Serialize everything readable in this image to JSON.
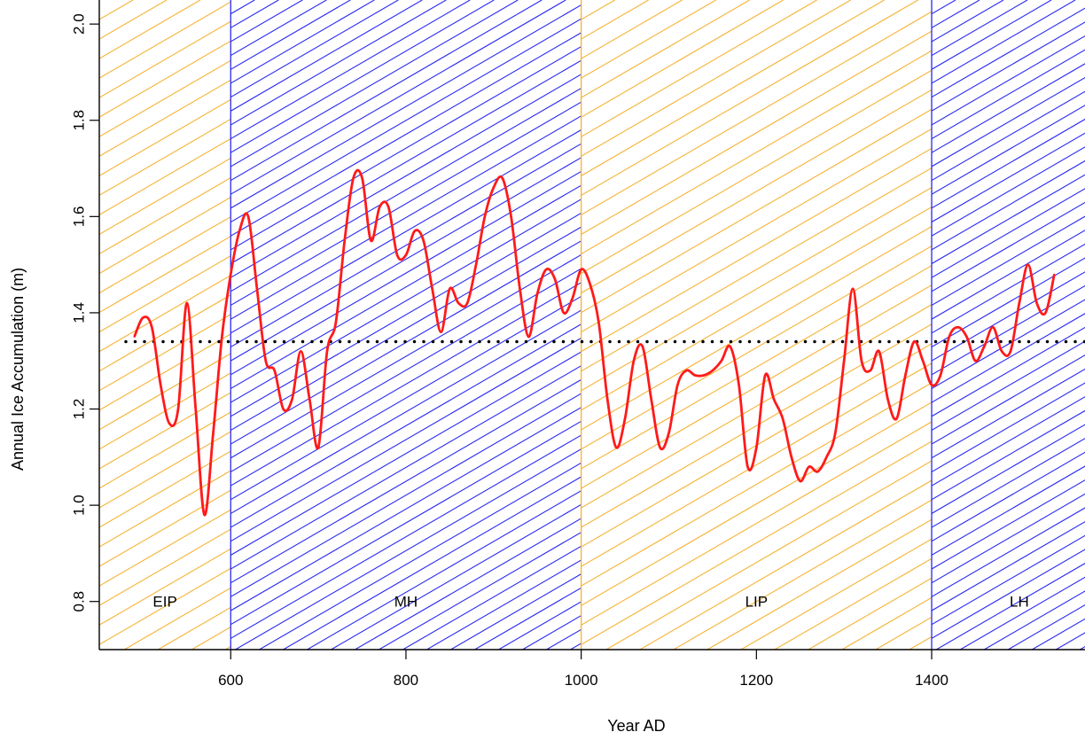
{
  "chart_data": {
    "type": "line",
    "title": "",
    "xlabel": "Year AD",
    "ylabel": "Annual Ice Accumulation (m)",
    "xlim": [
      450,
      1575
    ],
    "ylim": [
      0.7,
      2.05
    ],
    "xticks": [
      600,
      800,
      1000,
      1200,
      1400
    ],
    "xtick_labels": [
      "600",
      "800",
      "1000",
      "1200",
      "1400"
    ],
    "yticks": [
      0.8,
      1.0,
      1.2,
      1.4,
      1.6,
      1.8,
      2.0
    ],
    "ytick_labels": [
      "0.8",
      "1.0",
      "1.2",
      "1.4",
      "1.6",
      "1.8",
      "2.0"
    ],
    "mean_line": {
      "y": 1.34,
      "style": "dotted",
      "color": "#000000"
    },
    "periods": [
      {
        "label": "EIP",
        "start": 450,
        "end": 600,
        "hatch": "orange"
      },
      {
        "label": "MH",
        "start": 600,
        "end": 1000,
        "hatch": "blue"
      },
      {
        "label": "LIP",
        "start": 1000,
        "end": 1400,
        "hatch": "orange"
      },
      {
        "label": "LH",
        "start": 1400,
        "end": 1575,
        "hatch": "blue"
      }
    ],
    "colors": {
      "orange": "#f5b335",
      "blue": "#2a2af0",
      "line": "#ff1a1a"
    },
    "series": [
      {
        "x": [
          490,
          500,
          510,
          520,
          530,
          540,
          550,
          560,
          570,
          580,
          590,
          600,
          610,
          620,
          630,
          640,
          650,
          660,
          670,
          680,
          690,
          700,
          710,
          720,
          730,
          740,
          750,
          760,
          770,
          780,
          790,
          800,
          810,
          820,
          830,
          840,
          850,
          860,
          870,
          880,
          890,
          900,
          910,
          920,
          930,
          940,
          950,
          960,
          970,
          980,
          990,
          1000,
          1010,
          1020,
          1030,
          1040,
          1050,
          1060,
          1070,
          1080,
          1090,
          1100,
          1110,
          1120,
          1130,
          1140,
          1150,
          1160,
          1170,
          1180,
          1190,
          1200,
          1210,
          1220,
          1230,
          1240,
          1250,
          1260,
          1270,
          1280,
          1290,
          1300,
          1310,
          1320,
          1330,
          1340,
          1350,
          1360,
          1370,
          1380,
          1390,
          1400,
          1410,
          1420,
          1430,
          1440,
          1450,
          1460,
          1470,
          1480,
          1490,
          1500,
          1510,
          1520,
          1530,
          1540
        ],
        "y": [
          1.35,
          1.39,
          1.37,
          1.25,
          1.17,
          1.2,
          1.42,
          1.2,
          0.98,
          1.15,
          1.35,
          1.48,
          1.57,
          1.6,
          1.45,
          1.3,
          1.28,
          1.2,
          1.22,
          1.32,
          1.22,
          1.12,
          1.32,
          1.38,
          1.55,
          1.68,
          1.68,
          1.55,
          1.62,
          1.62,
          1.52,
          1.52,
          1.57,
          1.55,
          1.45,
          1.36,
          1.45,
          1.42,
          1.42,
          1.5,
          1.6,
          1.66,
          1.68,
          1.6,
          1.45,
          1.35,
          1.44,
          1.49,
          1.47,
          1.4,
          1.43,
          1.49,
          1.46,
          1.38,
          1.22,
          1.12,
          1.18,
          1.3,
          1.33,
          1.22,
          1.12,
          1.15,
          1.25,
          1.28,
          1.27,
          1.27,
          1.28,
          1.3,
          1.33,
          1.25,
          1.08,
          1.12,
          1.27,
          1.22,
          1.18,
          1.1,
          1.05,
          1.08,
          1.07,
          1.1,
          1.15,
          1.3,
          1.45,
          1.3,
          1.28,
          1.32,
          1.22,
          1.18,
          1.27,
          1.34,
          1.3,
          1.25,
          1.27,
          1.35,
          1.37,
          1.35,
          1.3,
          1.33,
          1.37,
          1.32,
          1.32,
          1.42,
          1.5,
          1.42,
          1.4,
          1.48
        ]
      }
    ]
  }
}
